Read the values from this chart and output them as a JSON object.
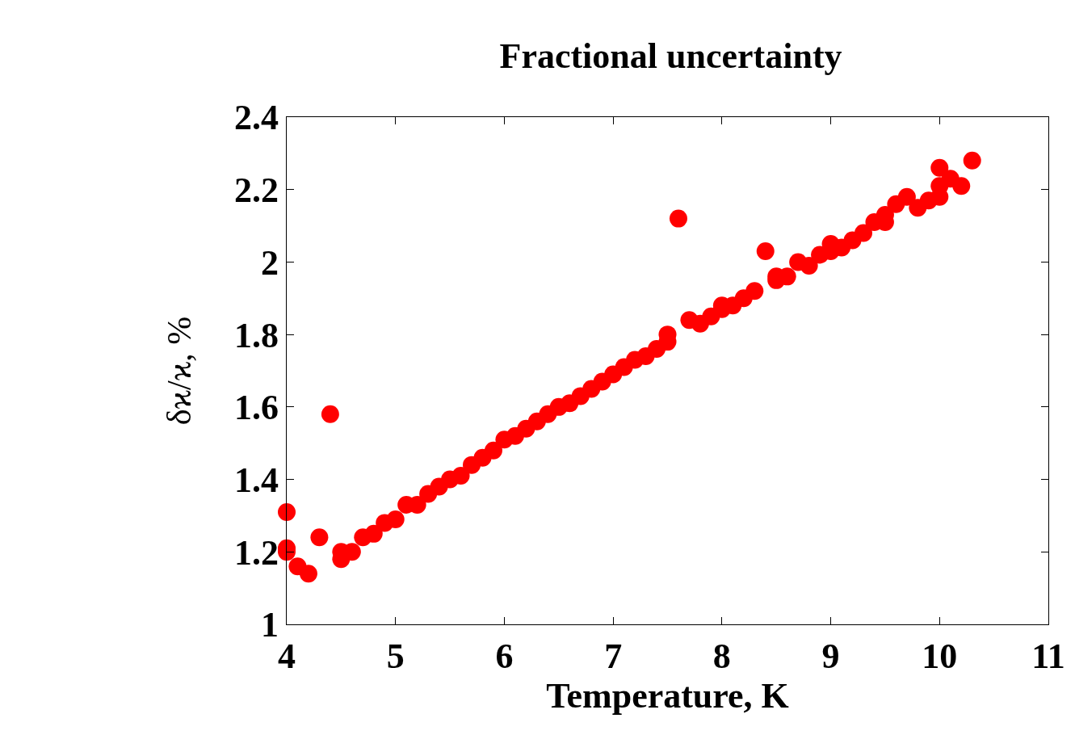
{
  "chart_data": {
    "type": "scatter",
    "title": "Fractional uncertainty",
    "xlabel": "Temperature, K",
    "ylabel": "δϰ/ϰ, %",
    "x": [
      4,
      4,
      4,
      4.1,
      4.2,
      4.3,
      4.4,
      4.5,
      4.5,
      4.6,
      4.7,
      4.8,
      4.9,
      5.0,
      5.1,
      5.2,
      5.3,
      5.4,
      5.5,
      5.6,
      5.7,
      5.8,
      5.9,
      6.0,
      6.1,
      6.2,
      6.3,
      6.4,
      6.5,
      6.6,
      6.7,
      6.8,
      6.9,
      7.0,
      7.1,
      7.2,
      7.3,
      7.4,
      7.5,
      7.5,
      7.6,
      7.7,
      7.8,
      7.9,
      8.0,
      8.0,
      8.1,
      8.2,
      8.3,
      8.4,
      8.5,
      8.5,
      8.6,
      8.7,
      8.8,
      8.9,
      9.0,
      9.0,
      9.1,
      9.2,
      9.3,
      9.4,
      9.5,
      9.5,
      9.6,
      9.7,
      9.8,
      9.9,
      10.0,
      10.0,
      10.0,
      10.1,
      10.2,
      10.3
    ],
    "series": [
      {
        "color": "#ff0000",
        "values": [
          1.31,
          1.21,
          1.2,
          1.16,
          1.14,
          1.24,
          1.58,
          1.18,
          1.2,
          1.2,
          1.24,
          1.25,
          1.28,
          1.29,
          1.33,
          1.33,
          1.36,
          1.38,
          1.4,
          1.41,
          1.44,
          1.46,
          1.48,
          1.51,
          1.52,
          1.54,
          1.56,
          1.58,
          1.6,
          1.61,
          1.63,
          1.65,
          1.67,
          1.69,
          1.71,
          1.73,
          1.74,
          1.76,
          1.8,
          1.78,
          2.12,
          1.84,
          1.83,
          1.85,
          1.88,
          1.87,
          1.88,
          1.9,
          1.92,
          2.03,
          1.95,
          1.96,
          1.96,
          2.0,
          1.99,
          2.02,
          2.05,
          2.03,
          2.04,
          2.06,
          2.08,
          2.11,
          2.13,
          2.11,
          2.16,
          2.18,
          2.15,
          2.17,
          2.26,
          2.21,
          2.18,
          2.23,
          2.21,
          2.28
        ]
      }
    ],
    "xlim": [
      4,
      11
    ],
    "xticks": [
      4,
      5,
      6,
      7,
      8,
      9,
      10,
      11
    ],
    "ylim": [
      1,
      2.4
    ],
    "yticks": [
      1,
      1.2,
      1.4,
      1.6,
      1.8,
      2,
      2.2,
      2.4
    ],
    "marker": "circle"
  }
}
